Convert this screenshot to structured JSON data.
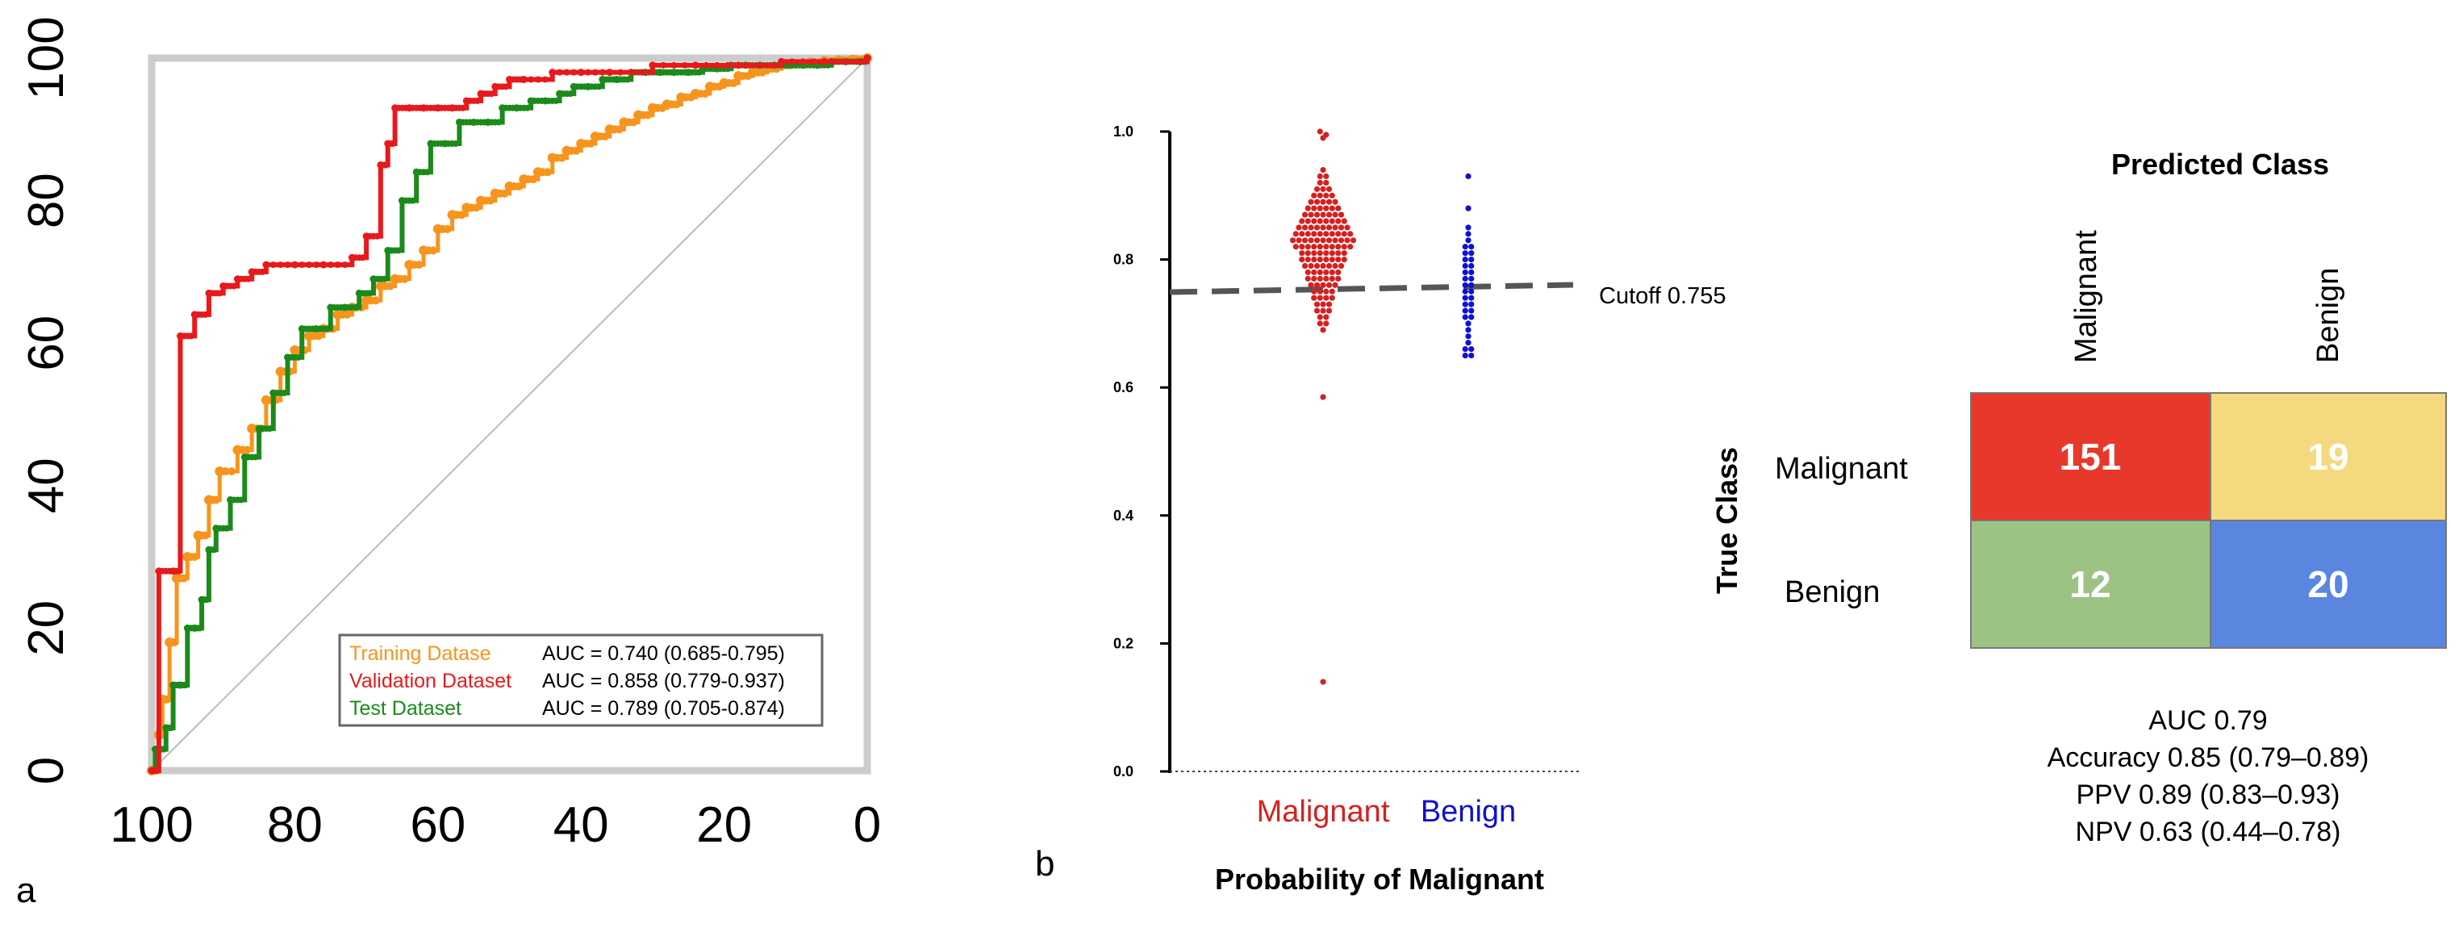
{
  "panel_a": {
    "letter": "a",
    "legend": [
      {
        "name": "Training Datase",
        "color": "#f7941d",
        "auc": "AUC = 0.740 (0.685-0.795)"
      },
      {
        "name": "Validation Dataset",
        "color": "#e8191b",
        "auc": "AUC = 0.858 (0.779-0.937)"
      },
      {
        "name": "Test Dataset",
        "color": "#1b8a1b",
        "auc": "AUC = 0.789 (0.705-0.874)"
      }
    ],
    "diagonal_color": "#bbbbbb"
  },
  "panel_b": {
    "letter": "b",
    "xlabel": "Probability of Malignant",
    "cutoff_label": "Cutoff 0.755",
    "groups": [
      {
        "name": "Malignant",
        "color": "#d62020"
      },
      {
        "name": "Benign",
        "color": "#1010d0"
      }
    ]
  },
  "panel_c": {
    "title": "Predicted Class",
    "col_labels": [
      "Malignant",
      "Benign"
    ],
    "row_title": "True Class",
    "row_labels": [
      "Malignant",
      "Benign"
    ],
    "cells": [
      {
        "value": "151",
        "color": "#e8382b"
      },
      {
        "value": "19",
        "color": "#f5d97e"
      },
      {
        "value": "12",
        "color": "#9dc384"
      },
      {
        "value": "20",
        "color": "#5b86e0"
      }
    ],
    "stats": [
      "AUC 0.79",
      "Accuracy 0.85 (0.79–0.89)",
      "PPV 0.89 (0.83–0.93)",
      "NPV 0.63 (0.44–0.78)"
    ]
  },
  "chart_data": [
    {
      "type": "line",
      "title": "",
      "xlabel": "",
      "ylabel": "",
      "xlim": [
        100,
        0
      ],
      "ylim": [
        0,
        100
      ],
      "xticks": [
        100,
        80,
        60,
        40,
        20,
        0
      ],
      "yticks": [
        0,
        20,
        40,
        60,
        80,
        100
      ],
      "reference_line": [
        [
          100,
          0
        ],
        [
          0,
          100
        ]
      ],
      "series": [
        {
          "name": "Training Datase",
          "color": "#f7941d",
          "x": [
            100,
            99,
            98.5,
            97.5,
            96.5,
            95,
            93.5,
            92,
            90.5,
            88,
            86,
            84,
            82,
            80,
            78,
            76,
            74,
            72,
            70,
            68,
            66,
            64,
            62,
            60,
            58,
            56,
            54,
            52,
            50,
            48,
            46,
            44,
            42,
            40,
            38,
            36,
            34,
            32,
            30,
            28,
            26,
            24,
            22,
            20,
            18,
            16,
            14,
            12,
            10,
            8,
            6,
            4,
            2,
            0
          ],
          "y": [
            0,
            5,
            10,
            18,
            27,
            30,
            33,
            38,
            42,
            45,
            48,
            52,
            56,
            59,
            61,
            62,
            64,
            65,
            66,
            68,
            69,
            71,
            73,
            76,
            78,
            79,
            80,
            81,
            82,
            83,
            84,
            86,
            87,
            88,
            89,
            90,
            91,
            92,
            93,
            93.5,
            94.5,
            95,
            96,
            96.5,
            97.5,
            98,
            98.5,
            99,
            99.2,
            99.4,
            99.6,
            99.7,
            99.8,
            100
          ]
        },
        {
          "name": "Validation Dataset",
          "color": "#e8191b",
          "x": [
            100,
            99,
            97,
            96,
            94,
            92,
            90,
            88,
            86,
            84,
            80,
            76,
            72,
            70,
            68,
            67,
            66,
            64,
            62,
            60,
            58,
            56,
            54,
            52,
            50,
            48,
            44,
            40,
            36,
            30,
            24,
            18,
            12,
            6,
            0
          ],
          "y": [
            0,
            28,
            28,
            61,
            64,
            67,
            68,
            69,
            70,
            71,
            71,
            71,
            72,
            75,
            85,
            88,
            93,
            93,
            93,
            93,
            93,
            94,
            95,
            96,
            97,
            97,
            98,
            98,
            98,
            99,
            99,
            99,
            99.5,
            99.5,
            100
          ]
        },
        {
          "name": "Test Dataset",
          "color": "#1b8a1b",
          "x": [
            100,
            99.5,
            99,
            98,
            97,
            96,
            95,
            94,
            93,
            92,
            91,
            89,
            87,
            85,
            83,
            81,
            79,
            77,
            75,
            73,
            71,
            69,
            67,
            65,
            63,
            61,
            59,
            57,
            55,
            53,
            51,
            49,
            47,
            45,
            43,
            41,
            39,
            37,
            35,
            33,
            31,
            29,
            27,
            25,
            23,
            21,
            19,
            17,
            15,
            13,
            11,
            9,
            7,
            5,
            3,
            1,
            0
          ],
          "y": [
            0,
            3,
            3,
            6,
            12,
            12,
            20,
            20,
            24,
            31,
            34,
            38,
            44,
            48,
            53,
            58,
            62,
            62,
            65,
            65,
            67,
            69,
            73,
            80,
            84,
            88,
            88,
            91,
            91,
            91,
            93,
            93,
            94,
            94,
            95,
            96,
            96,
            97,
            97,
            98,
            98,
            98,
            98,
            98,
            98.5,
            98.5,
            99,
            99,
            99,
            99,
            99,
            99,
            99,
            99.5,
            99.5,
            99.5,
            100
          ]
        }
      ]
    },
    {
      "type": "scatter",
      "title": "",
      "xlabel": "Probability of Malignant",
      "ylabel": "",
      "categories": [
        "Malignant",
        "Benign"
      ],
      "ylim": [
        0,
        1
      ],
      "yticks": [
        0.0,
        0.2,
        0.4,
        0.6,
        0.8,
        1.0
      ],
      "cutoff": 0.755,
      "series": [
        {
          "name": "Malignant",
          "color": "#d62020",
          "values": [
            1.0,
            0.995,
            0.99,
            0.14,
            0.585,
            0.69,
            0.7,
            0.7,
            0.71,
            0.71,
            0.72,
            0.72,
            0.72,
            0.73,
            0.73,
            0.73,
            0.74,
            0.74,
            0.74,
            0.74,
            0.75,
            0.75,
            0.75,
            0.75,
            0.76,
            0.76,
            0.76,
            0.76,
            0.76,
            0.77,
            0.77,
            0.77,
            0.77,
            0.77,
            0.77,
            0.78,
            0.78,
            0.78,
            0.78,
            0.78,
            0.78,
            0.79,
            0.79,
            0.79,
            0.79,
            0.79,
            0.79,
            0.79,
            0.8,
            0.8,
            0.8,
            0.8,
            0.8,
            0.8,
            0.8,
            0.8,
            0.81,
            0.81,
            0.81,
            0.81,
            0.81,
            0.81,
            0.81,
            0.81,
            0.82,
            0.82,
            0.82,
            0.82,
            0.82,
            0.82,
            0.82,
            0.82,
            0.82,
            0.82,
            0.83,
            0.83,
            0.83,
            0.83,
            0.83,
            0.83,
            0.83,
            0.83,
            0.83,
            0.83,
            0.83,
            0.84,
            0.84,
            0.84,
            0.84,
            0.84,
            0.84,
            0.84,
            0.84,
            0.84,
            0.84,
            0.85,
            0.85,
            0.85,
            0.85,
            0.85,
            0.85,
            0.85,
            0.85,
            0.85,
            0.86,
            0.86,
            0.86,
            0.86,
            0.86,
            0.86,
            0.86,
            0.86,
            0.87,
            0.87,
            0.87,
            0.87,
            0.87,
            0.87,
            0.87,
            0.88,
            0.88,
            0.88,
            0.88,
            0.88,
            0.88,
            0.89,
            0.89,
            0.89,
            0.89,
            0.89,
            0.9,
            0.9,
            0.9,
            0.9,
            0.91,
            0.91,
            0.91,
            0.92,
            0.92,
            0.93,
            0.93,
            0.94
          ]
        },
        {
          "name": "Benign",
          "color": "#1010d0",
          "values": [
            0.93,
            0.88,
            0.85,
            0.84,
            0.83,
            0.82,
            0.82,
            0.81,
            0.81,
            0.8,
            0.8,
            0.79,
            0.79,
            0.78,
            0.78,
            0.77,
            0.77,
            0.76,
            0.76,
            0.75,
            0.75,
            0.74,
            0.74,
            0.73,
            0.73,
            0.72,
            0.72,
            0.71,
            0.71,
            0.7,
            0.69,
            0.68,
            0.67,
            0.66,
            0.66,
            0.65,
            0.65
          ]
        }
      ]
    },
    {
      "type": "heatmap",
      "title": "Predicted Class",
      "xlabel": "Predicted Class",
      "ylabel": "True Class",
      "categories": [
        "Malignant",
        "Benign"
      ],
      "values": [
        [
          151,
          19
        ],
        [
          12,
          20
        ]
      ],
      "annotations": [
        "AUC 0.79",
        "Accuracy 0.85 (0.79–0.89)",
        "PPV 0.89 (0.83–0.93)",
        "NPV 0.63 (0.44–0.78)"
      ]
    }
  ]
}
